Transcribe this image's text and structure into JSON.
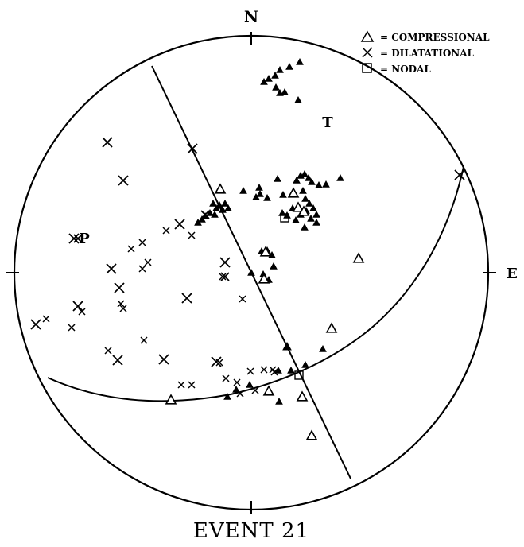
{
  "title": "EVENT 21",
  "compass": {
    "north": "N",
    "east": "E"
  },
  "axes": {
    "p_label": "P",
    "t_label": "T"
  },
  "legend": [
    {
      "symbol": "triangle",
      "label": "= COMPRESSIONAL"
    },
    {
      "symbol": "cross",
      "label": "= DILATATIONAL"
    },
    {
      "symbol": "square",
      "label": "= NODAL"
    }
  ]
}
